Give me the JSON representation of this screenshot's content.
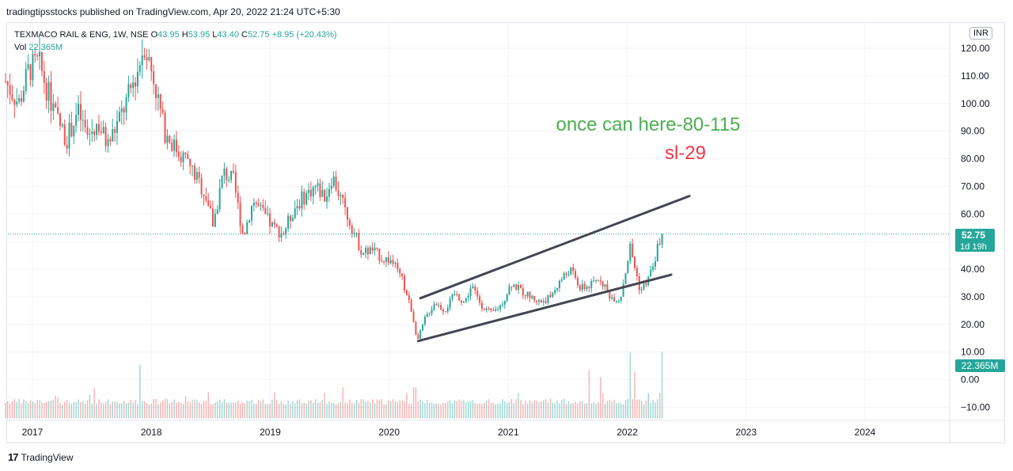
{
  "header": "tradingtipsstocks published on TradingView.com, Apr 20, 2022 21:24 UTC+5:30",
  "legend": {
    "symbol": "TEXMACO RAIL & ENG, 1W, NSE",
    "o_label": "O",
    "o": "43.95",
    "h_label": "H",
    "h": "53.95",
    "l_label": "L",
    "l": "43.40",
    "c_label": "C",
    "c": "52.75",
    "change": "+8.95 (+20.43%)",
    "vol_label": "Vol",
    "vol": "22.365M"
  },
  "currency_button": "INR",
  "price_badge": "52.75",
  "time_badge": "1d 19h",
  "vol_badge": "22.365M",
  "annotations": {
    "target": "once can here-80-115",
    "stop": "sl-29"
  },
  "footer": {
    "logo": "17",
    "brand": "TradingView"
  },
  "colors": {
    "up": "#26a69a",
    "down": "#ef5350",
    "target_text": "#4caf50",
    "stop_text": "#f23645",
    "trendline": "#434651"
  },
  "chart_data": {
    "type": "candlestick",
    "y_ticks": [
      "120.00",
      "110.00",
      "100.00",
      "90.00",
      "80.00",
      "70.00",
      "60.00",
      "50.00",
      "40.00",
      "30.00",
      "20.00",
      "10.00",
      "0.00",
      "−10.00"
    ],
    "x_ticks": [
      "2017",
      "2018",
      "2019",
      "2020",
      "2021",
      "2022",
      "2023",
      "2024"
    ],
    "ylim": [
      -15,
      125
    ],
    "last_price": 52.75,
    "price_path": [
      [
        "2016-10-10",
        108
      ],
      [
        "2016-11-20",
        100
      ],
      [
        "2016-12-20",
        112
      ],
      [
        "2017-01-20",
        115
      ],
      [
        "2017-02-15",
        105
      ],
      [
        "2017-03-15",
        95
      ],
      [
        "2017-04-15",
        87
      ],
      [
        "2017-05-20",
        97
      ],
      [
        "2017-06-20",
        88
      ],
      [
        "2017-07-20",
        93
      ],
      [
        "2017-08-20",
        85
      ],
      [
        "2017-09-20",
        93
      ],
      [
        "2017-10-15",
        100
      ],
      [
        "2017-11-20",
        112
      ],
      [
        "2017-12-10",
        122
      ],
      [
        "2018-01-10",
        108
      ],
      [
        "2018-02-10",
        90
      ],
      [
        "2018-03-15",
        84
      ],
      [
        "2018-04-15",
        80
      ],
      [
        "2018-05-20",
        73
      ],
      [
        "2018-06-20",
        66
      ],
      [
        "2018-07-10",
        56
      ],
      [
        "2018-08-10",
        75
      ],
      [
        "2018-09-10",
        72
      ],
      [
        "2018-10-10",
        52
      ],
      [
        "2018-11-10",
        65
      ],
      [
        "2018-12-10",
        60
      ],
      [
        "2019-01-10",
        55
      ],
      [
        "2019-02-10",
        53
      ],
      [
        "2019-03-15",
        62
      ],
      [
        "2019-04-20",
        67
      ],
      [
        "2019-05-20",
        70
      ],
      [
        "2019-06-20",
        66
      ],
      [
        "2019-07-10",
        74
      ],
      [
        "2019-08-10",
        64
      ],
      [
        "2019-09-10",
        55
      ],
      [
        "2019-10-10",
        46
      ],
      [
        "2019-11-10",
        47
      ],
      [
        "2019-12-10",
        44
      ],
      [
        "2020-01-10",
        43
      ],
      [
        "2020-02-10",
        36
      ],
      [
        "2020-03-10",
        25
      ],
      [
        "2020-03-28",
        14
      ],
      [
        "2020-04-20",
        22
      ],
      [
        "2020-05-20",
        28
      ],
      [
        "2020-06-20",
        25
      ],
      [
        "2020-07-20",
        31
      ],
      [
        "2020-08-20",
        28
      ],
      [
        "2020-09-10",
        34
      ],
      [
        "2020-10-10",
        27
      ],
      [
        "2020-11-10",
        24
      ],
      [
        "2020-12-10",
        27
      ],
      [
        "2021-01-10",
        35
      ],
      [
        "2021-02-10",
        32
      ],
      [
        "2021-03-10",
        30
      ],
      [
        "2021-04-10",
        28
      ],
      [
        "2021-05-10",
        30
      ],
      [
        "2021-06-10",
        36
      ],
      [
        "2021-07-10",
        40
      ],
      [
        "2021-08-10",
        33
      ],
      [
        "2021-09-10",
        34
      ],
      [
        "2021-10-10",
        37
      ],
      [
        "2021-11-10",
        30
      ],
      [
        "2021-12-10",
        29
      ],
      [
        "2022-01-10",
        48
      ],
      [
        "2022-02-10",
        32
      ],
      [
        "2022-03-10",
        37
      ],
      [
        "2022-04-18",
        53
      ]
    ],
    "volume_spikes": [
      [
        "2017-11-27",
        17
      ],
      [
        "2019-01-14",
        6
      ],
      [
        "2020-03-20",
        8
      ],
      [
        "2021-09-06",
        15
      ],
      [
        "2021-10-11",
        12
      ],
      [
        "2022-01-10",
        22
      ],
      [
        "2022-01-24",
        14
      ],
      [
        "2022-04-18",
        22.365
      ]
    ],
    "trendlines": [
      {
        "from": [
          "2020-03-30",
          14
        ],
        "to": [
          "2022-05-16",
          38
        ]
      },
      {
        "from": [
          "2020-04-06",
          29.5
        ],
        "to": [
          "2022-07-11",
          66.5
        ]
      }
    ]
  }
}
